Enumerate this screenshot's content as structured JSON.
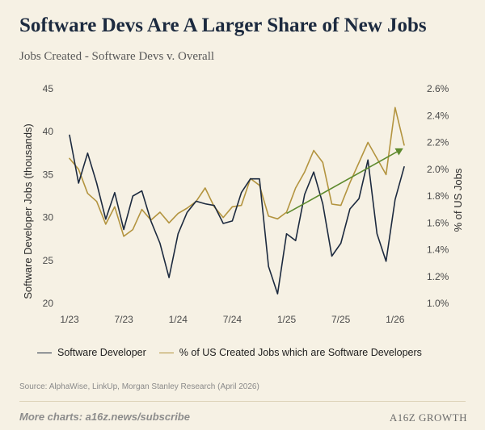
{
  "title": "Software Devs Are A Larger Share of New Jobs",
  "subtitle": "Jobs Created - Software Devs v. Overall",
  "source": "Source: AlphaWise, LinkUp, Morgan Stanley Research (April 2026)",
  "footer": {
    "more": "More charts: a16z.news/subscribe",
    "brand": "A16Z GROWTH"
  },
  "colors": {
    "navy": "#1c2a3f",
    "gold": "#b3943f",
    "green": "#5e8a2e",
    "background": "#f6f1e4"
  },
  "chart_data": {
    "type": "line",
    "x_ticks": [
      "1/23",
      "7/23",
      "1/24",
      "7/24",
      "1/25",
      "7/25",
      "1/26"
    ],
    "ylabel_left": "Software Developer Jobs (thousands)",
    "ylabel_right": "% of US Jobs",
    "ylim_left": [
      20,
      45
    ],
    "yticks_left": [
      "20",
      "25",
      "30",
      "35",
      "40",
      "45"
    ],
    "ylim_right": [
      1.0,
      2.6
    ],
    "yticks_right": [
      "1.0%",
      "1.2%",
      "1.4%",
      "1.6%",
      "1.8%",
      "2.0%",
      "2.2%",
      "2.4%",
      "2.6%"
    ],
    "months": [
      "1/23",
      "2/23",
      "3/23",
      "4/23",
      "5/23",
      "6/23",
      "7/23",
      "8/23",
      "9/23",
      "10/23",
      "11/23",
      "12/23",
      "1/24",
      "2/24",
      "3/24",
      "4/24",
      "5/24",
      "6/24",
      "7/24",
      "8/24",
      "9/24",
      "10/24",
      "11/24",
      "12/24",
      "1/25",
      "2/25",
      "3/25",
      "4/25",
      "5/25",
      "6/25",
      "7/25",
      "8/25",
      "9/25",
      "10/25",
      "11/25",
      "12/25",
      "1/26",
      "2/26"
    ],
    "series": [
      {
        "name": "Software Developer",
        "axis": "left",
        "values": [
          39.6,
          34.0,
          37.5,
          34.0,
          29.8,
          32.9,
          28.6,
          32.5,
          33.1,
          29.6,
          27.0,
          23.0,
          28.1,
          30.6,
          31.9,
          31.6,
          31.4,
          29.3,
          29.6,
          32.9,
          34.5,
          34.5,
          24.3,
          21.1,
          28.1,
          27.3,
          32.7,
          35.3,
          31.6,
          25.5,
          27.0,
          31.0,
          32.2,
          36.7,
          28.1,
          24.9,
          32.1,
          35.9
        ]
      },
      {
        "name": "% of US Created Jobs which are Software Developers",
        "axis": "right",
        "values": [
          2.08,
          2.0,
          1.82,
          1.76,
          1.59,
          1.72,
          1.5,
          1.55,
          1.7,
          1.62,
          1.68,
          1.6,
          1.67,
          1.71,
          1.76,
          1.86,
          1.72,
          1.64,
          1.72,
          1.73,
          1.93,
          1.88,
          1.65,
          1.63,
          1.68,
          1.86,
          1.98,
          2.14,
          2.05,
          1.74,
          1.73,
          1.9,
          2.05,
          2.2,
          2.08,
          1.96,
          2.46,
          2.18
        ]
      }
    ],
    "trend": {
      "from": {
        "month_index": 24,
        "value": 1.67
      },
      "to": {
        "month_index": 37,
        "value": 2.15
      }
    }
  }
}
